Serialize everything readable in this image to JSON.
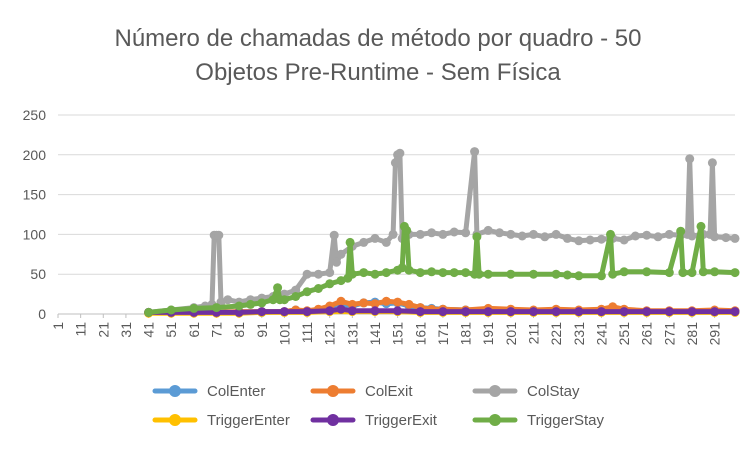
{
  "chart_data": {
    "type": "line",
    "title_lines": [
      "Número de chamadas de método por quadro - 50",
      "Objetos Pre-Runtime - Sem Física"
    ],
    "xlabel": "",
    "ylabel": "",
    "ylim": [
      0,
      250
    ],
    "yticks": [
      0,
      50,
      100,
      150,
      200,
      250
    ],
    "xlim": [
      1,
      300
    ],
    "xticks": [
      1,
      11,
      21,
      31,
      41,
      51,
      61,
      71,
      81,
      91,
      101,
      111,
      121,
      131,
      141,
      151,
      161,
      171,
      181,
      191,
      201,
      211,
      221,
      231,
      241,
      251,
      261,
      271,
      281,
      291
    ],
    "grid": true,
    "legend_position": "bottom",
    "series": [
      {
        "name": "ColEnter",
        "color": "#5B9BD5",
        "points": [
          [
            41,
            2
          ],
          [
            51,
            2
          ],
          [
            61,
            2
          ],
          [
            71,
            2
          ],
          [
            81,
            2
          ],
          [
            91,
            2
          ],
          [
            101,
            3
          ],
          [
            106,
            5
          ],
          [
            111,
            3
          ],
          [
            116,
            5
          ],
          [
            121,
            8
          ],
          [
            126,
            12
          ],
          [
            131,
            10
          ],
          [
            136,
            14
          ],
          [
            141,
            15
          ],
          [
            146,
            13
          ],
          [
            151,
            14
          ],
          [
            156,
            10
          ],
          [
            161,
            8
          ],
          [
            166,
            7
          ],
          [
            171,
            6
          ],
          [
            181,
            5
          ],
          [
            191,
            6
          ],
          [
            201,
            5
          ],
          [
            211,
            4
          ],
          [
            221,
            5
          ],
          [
            231,
            4
          ],
          [
            241,
            4
          ],
          [
            251,
            4
          ],
          [
            261,
            3
          ],
          [
            271,
            3
          ],
          [
            281,
            3
          ],
          [
            291,
            3
          ],
          [
            300,
            3
          ]
        ]
      },
      {
        "name": "ColExit",
        "color": "#ED7D31",
        "points": [
          [
            41,
            2
          ],
          [
            51,
            2
          ],
          [
            61,
            2
          ],
          [
            71,
            2
          ],
          [
            81,
            3
          ],
          [
            91,
            3
          ],
          [
            101,
            3
          ],
          [
            106,
            5
          ],
          [
            111,
            4
          ],
          [
            116,
            6
          ],
          [
            121,
            10
          ],
          [
            126,
            16
          ],
          [
            131,
            12
          ],
          [
            136,
            14
          ],
          [
            141,
            13
          ],
          [
            146,
            16
          ],
          [
            151,
            15
          ],
          [
            156,
            12
          ],
          [
            161,
            8
          ],
          [
            166,
            6
          ],
          [
            171,
            6
          ],
          [
            181,
            5
          ],
          [
            191,
            7
          ],
          [
            201,
            6
          ],
          [
            211,
            5
          ],
          [
            221,
            6
          ],
          [
            231,
            5
          ],
          [
            241,
            6
          ],
          [
            246,
            9
          ],
          [
            251,
            6
          ],
          [
            261,
            4
          ],
          [
            271,
            4
          ],
          [
            281,
            4
          ],
          [
            291,
            5
          ],
          [
            300,
            4
          ]
        ]
      },
      {
        "name": "ColStay",
        "color": "#A5A5A5",
        "points": [
          [
            41,
            2
          ],
          [
            51,
            5
          ],
          [
            61,
            8
          ],
          [
            66,
            10
          ],
          [
            69,
            12
          ],
          [
            70,
            99
          ],
          [
            71,
            99
          ],
          [
            72,
            99
          ],
          [
            73,
            15
          ],
          [
            76,
            18
          ],
          [
            81,
            15
          ],
          [
            86,
            18
          ],
          [
            91,
            20
          ],
          [
            96,
            22
          ],
          [
            101,
            25
          ],
          [
            106,
            30
          ],
          [
            111,
            50
          ],
          [
            116,
            50
          ],
          [
            121,
            52
          ],
          [
            123,
            99
          ],
          [
            124,
            65
          ],
          [
            126,
            75
          ],
          [
            131,
            85
          ],
          [
            136,
            90
          ],
          [
            141,
            95
          ],
          [
            146,
            90
          ],
          [
            149,
            100
          ],
          [
            150,
            190
          ],
          [
            151,
            200
          ],
          [
            152,
            202
          ],
          [
            153,
            95
          ],
          [
            156,
            100
          ],
          [
            161,
            100
          ],
          [
            166,
            102
          ],
          [
            171,
            100
          ],
          [
            176,
            103
          ],
          [
            181,
            102
          ],
          [
            185,
            204
          ],
          [
            186,
            100
          ],
          [
            191,
            105
          ],
          [
            196,
            102
          ],
          [
            201,
            100
          ],
          [
            206,
            98
          ],
          [
            211,
            100
          ],
          [
            216,
            97
          ],
          [
            221,
            100
          ],
          [
            226,
            95
          ],
          [
            231,
            92
          ],
          [
            236,
            93
          ],
          [
            241,
            94
          ],
          [
            246,
            95
          ],
          [
            251,
            93
          ],
          [
            256,
            98
          ],
          [
            261,
            99
          ],
          [
            266,
            97
          ],
          [
            271,
            100
          ],
          [
            276,
            99
          ],
          [
            279,
            100
          ],
          [
            280,
            195
          ],
          [
            281,
            98
          ],
          [
            286,
            100
          ],
          [
            289,
            100
          ],
          [
            290,
            190
          ],
          [
            291,
            97
          ],
          [
            296,
            96
          ],
          [
            300,
            95
          ]
        ]
      },
      {
        "name": "TriggerEnter",
        "color": "#FFC000",
        "points": [
          [
            41,
            1
          ],
          [
            51,
            1
          ],
          [
            61,
            1
          ],
          [
            71,
            1
          ],
          [
            81,
            1
          ],
          [
            91,
            2
          ],
          [
            101,
            2
          ],
          [
            111,
            2
          ],
          [
            121,
            3
          ],
          [
            131,
            3
          ],
          [
            141,
            3
          ],
          [
            151,
            3
          ],
          [
            161,
            2
          ],
          [
            171,
            2
          ],
          [
            181,
            2
          ],
          [
            191,
            2
          ],
          [
            201,
            2
          ],
          [
            211,
            2
          ],
          [
            221,
            2
          ],
          [
            231,
            2
          ],
          [
            241,
            2
          ],
          [
            251,
            2
          ],
          [
            261,
            2
          ],
          [
            271,
            2
          ],
          [
            281,
            2
          ],
          [
            291,
            2
          ],
          [
            300,
            2
          ]
        ]
      },
      {
        "name": "TriggerExit",
        "color": "#7030A0",
        "points": [
          [
            41,
            2
          ],
          [
            51,
            2
          ],
          [
            61,
            2
          ],
          [
            71,
            2
          ],
          [
            81,
            2
          ],
          [
            91,
            3
          ],
          [
            101,
            3
          ],
          [
            111,
            3
          ],
          [
            121,
            4
          ],
          [
            126,
            6
          ],
          [
            131,
            4
          ],
          [
            141,
            4
          ],
          [
            151,
            4
          ],
          [
            161,
            3
          ],
          [
            171,
            3
          ],
          [
            181,
            3
          ],
          [
            191,
            3
          ],
          [
            201,
            3
          ],
          [
            211,
            3
          ],
          [
            221,
            3
          ],
          [
            231,
            3
          ],
          [
            241,
            3
          ],
          [
            251,
            3
          ],
          [
            261,
            3
          ],
          [
            271,
            3
          ],
          [
            281,
            3
          ],
          [
            291,
            3
          ],
          [
            300,
            3
          ]
        ]
      },
      {
        "name": "TriggerStay",
        "color": "#70AD47",
        "points": [
          [
            41,
            2
          ],
          [
            51,
            5
          ],
          [
            61,
            7
          ],
          [
            71,
            8
          ],
          [
            81,
            10
          ],
          [
            86,
            12
          ],
          [
            91,
            14
          ],
          [
            96,
            18
          ],
          [
            98,
            33
          ],
          [
            99,
            18
          ],
          [
            101,
            18
          ],
          [
            106,
            22
          ],
          [
            111,
            28
          ],
          [
            116,
            32
          ],
          [
            121,
            38
          ],
          [
            126,
            42
          ],
          [
            129,
            45
          ],
          [
            130,
            90
          ],
          [
            131,
            50
          ],
          [
            136,
            52
          ],
          [
            141,
            50
          ],
          [
            146,
            52
          ],
          [
            151,
            55
          ],
          [
            153,
            58
          ],
          [
            154,
            110
          ],
          [
            155,
            105
          ],
          [
            156,
            55
          ],
          [
            161,
            52
          ],
          [
            166,
            53
          ],
          [
            171,
            52
          ],
          [
            176,
            52
          ],
          [
            181,
            52
          ],
          [
            185,
            50
          ],
          [
            186,
            97
          ],
          [
            187,
            50
          ],
          [
            191,
            50
          ],
          [
            201,
            50
          ],
          [
            211,
            50
          ],
          [
            221,
            50
          ],
          [
            226,
            49
          ],
          [
            231,
            48
          ],
          [
            241,
            48
          ],
          [
            245,
            100
          ],
          [
            246,
            50
          ],
          [
            251,
            53
          ],
          [
            261,
            53
          ],
          [
            271,
            52
          ],
          [
            276,
            104
          ],
          [
            277,
            52
          ],
          [
            281,
            52
          ],
          [
            285,
            110
          ],
          [
            286,
            53
          ],
          [
            291,
            53
          ],
          [
            300,
            52
          ]
        ]
      }
    ]
  }
}
